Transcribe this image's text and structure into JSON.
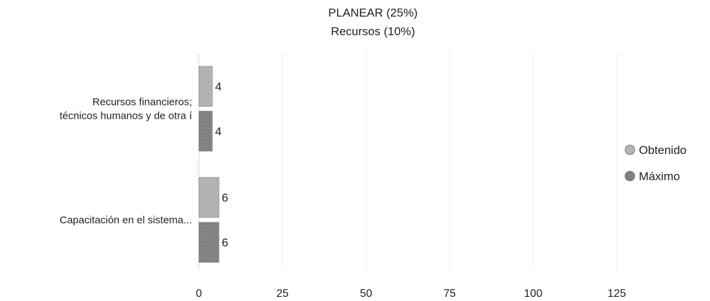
{
  "chart_data": {
    "type": "bar",
    "orientation": "horizontal",
    "title": "PLANEAR (25%)",
    "subtitle": "Recursos (10%)",
    "categories": [
      [
        "Recursos financieros;",
        "técnicos humanos y de otra í"
      ],
      [
        "Capacitación en el sistema..."
      ]
    ],
    "series": [
      {
        "name": "Obtenido",
        "values": [
          4,
          6
        ],
        "color": "#b3b3b3"
      },
      {
        "name": "Máximo",
        "values": [
          4,
          6
        ],
        "color": "#808080"
      }
    ],
    "value_labels": [
      [
        "4",
        "6"
      ],
      [
        "4",
        "6"
      ]
    ],
    "xlim": [
      0,
      125
    ],
    "x_ticks": [
      "0",
      "25",
      "50",
      "75",
      "100",
      "125"
    ],
    "grid": true,
    "legend_position": "right"
  }
}
